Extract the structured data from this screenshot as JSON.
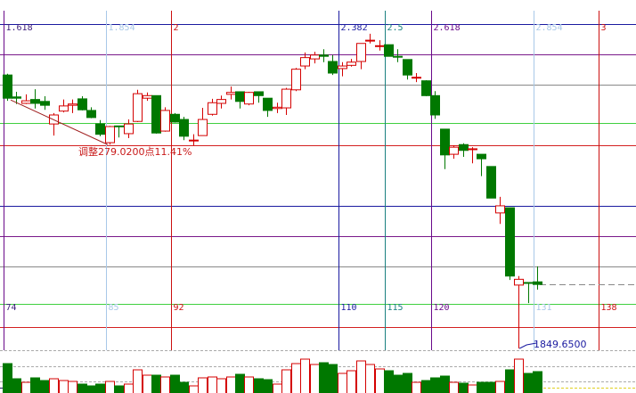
{
  "chart_data": {
    "type": "candlestick",
    "title": "",
    "colors": {
      "up": "#d40000",
      "down": "#007800",
      "background": "#ffffff"
    },
    "fib_time_lines": [
      {
        "ratio": "1.618",
        "bar": "74",
        "color": "#6a0a8a",
        "label_color": "#3a1a7a"
      },
      {
        "ratio": "1.854",
        "bar": "85",
        "color": "#a8c8e8",
        "label_color": "#a8c8e8"
      },
      {
        "ratio": "2",
        "bar": "92",
        "color": "#cc1010",
        "label_color": "#cc1010"
      },
      {
        "ratio": "2.382",
        "bar": "110",
        "color": "#1a1aa0",
        "label_color": "#1a1aa0"
      },
      {
        "ratio": "2.5",
        "bar": "115",
        "color": "#1a8080",
        "label_color": "#1a8080"
      },
      {
        "ratio": "2.618",
        "bar": "120",
        "color": "#6a0a8a",
        "label_color": "#6a0a8a"
      },
      {
        "ratio": "2.854",
        "bar": "131",
        "color": "#a8c8e8",
        "label_color": "#a8c8e8"
      },
      {
        "ratio": "3",
        "bar": "138",
        "color": "#cc1010",
        "label_color": "#cc1010"
      }
    ],
    "price_lines": [
      {
        "price": 2353.1,
        "color": "#1a1aa0"
      },
      {
        "price": 2306.0,
        "color": "#7a1a8a"
      },
      {
        "price": 2259.0,
        "color": "#888888"
      },
      {
        "price": 2199.5,
        "color": "#40d040"
      },
      {
        "price": 2165.0,
        "color": "#d42020"
      },
      {
        "price": 2070.9,
        "color": "#1a1aa0"
      },
      {
        "price": 2023.9,
        "color": "#7a1a8a"
      },
      {
        "price": 1976.9,
        "color": "#888888"
      },
      {
        "price": 1918.8,
        "color": "#40d040"
      },
      {
        "price": 1882.8,
        "color": "#d42020"
      }
    ],
    "first_bar": 74,
    "candles": [
      [
        2274,
        2276,
        2234,
        2238
      ],
      [
        2240,
        2248,
        2229,
        2238
      ],
      [
        2230,
        2244,
        2229,
        2234
      ],
      [
        2236,
        2252,
        2222,
        2230
      ],
      [
        2233,
        2241,
        2220,
        2227
      ],
      [
        2198,
        2215,
        2180,
        2212
      ],
      [
        2218,
        2236,
        2216,
        2226
      ],
      [
        2227,
        2236,
        2215,
        2229
      ],
      [
        2237,
        2241,
        2219,
        2220
      ],
      [
        2219,
        2224,
        2207,
        2208
      ],
      [
        2198,
        2204,
        2179,
        2182
      ],
      [
        2169,
        2195,
        2166,
        2194
      ],
      [
        2195,
        2195,
        2177,
        2194
      ],
      [
        2183,
        2205,
        2176,
        2198
      ],
      [
        2202,
        2251,
        2201,
        2245
      ],
      [
        2238,
        2247,
        2234,
        2242
      ],
      [
        2242,
        2242,
        2183,
        2184
      ],
      [
        2187,
        2224,
        2186,
        2219
      ],
      [
        2213,
        2215,
        2200,
        2201
      ],
      [
        2205,
        2209,
        2173,
        2179
      ],
      [
        2172,
        2182,
        2165,
        2173
      ],
      [
        2180,
        2223,
        2180,
        2205
      ],
      [
        2213,
        2237,
        2211,
        2231
      ],
      [
        2230,
        2242,
        2222,
        2236
      ],
      [
        2244,
        2256,
        2236,
        2247
      ],
      [
        2248,
        2248,
        2222,
        2233
      ],
      [
        2229,
        2248,
        2227,
        2247
      ],
      [
        2248,
        2248,
        2231,
        2242
      ],
      [
        2238,
        2238,
        2209,
        2219
      ],
      [
        2222,
        2231,
        2215,
        2224
      ],
      [
        2223,
        2254,
        2212,
        2252
      ],
      [
        2251,
        2285,
        2249,
        2283
      ],
      [
        2288,
        2309,
        2283,
        2301
      ],
      [
        2299,
        2310,
        2292,
        2305
      ],
      [
        2305,
        2314,
        2294,
        2303
      ],
      [
        2295,
        2305,
        2274,
        2277
      ],
      [
        2284,
        2294,
        2272,
        2288
      ],
      [
        2289,
        2299,
        2287,
        2294
      ],
      [
        2295,
        2323,
        2283,
        2323
      ],
      [
        2327,
        2338,
        2323,
        2328
      ],
      [
        2319,
        2328,
        2312,
        2319.5
      ],
      [
        2321,
        2321,
        2303,
        2303
      ],
      [
        2303,
        2314,
        2294,
        2302
      ],
      [
        2298,
        2298,
        2267,
        2274
      ],
      [
        2270,
        2277,
        2263,
        2270.5
      ],
      [
        2265,
        2266,
        2241,
        2242
      ],
      [
        2242,
        2249,
        2206,
        2212
      ],
      [
        2190,
        2190,
        2128,
        2150
      ],
      [
        2151,
        2165,
        2144,
        2162
      ],
      [
        2166,
        2168,
        2147,
        2157
      ],
      [
        2159,
        2162,
        2137,
        2159.5
      ],
      [
        2151,
        2151,
        2117,
        2144
      ],
      [
        2132,
        2132,
        2083,
        2083
      ],
      [
        2060,
        2085,
        2043,
        2071
      ],
      [
        2068,
        2068,
        1956,
        1962
      ],
      [
        1948,
        1962,
        1849.65,
        1957
      ],
      [
        1952,
        1952,
        1920,
        1951
      ],
      [
        1953,
        1977,
        1941,
        1949
      ]
    ],
    "volume": [
      33,
      16,
      12,
      17,
      14,
      16,
      14,
      13,
      10,
      8,
      10,
      13,
      8,
      10,
      26,
      20,
      20,
      18,
      20,
      12,
      8,
      17,
      18,
      16,
      18,
      21,
      18,
      16,
      15,
      10,
      26,
      33,
      38,
      32,
      34,
      32,
      22,
      25,
      36,
      32,
      27,
      25,
      20,
      22,
      12,
      14,
      17,
      19,
      12,
      11,
      9,
      12,
      12,
      13,
      26,
      38,
      22,
      24
    ],
    "annotations": {
      "retracement": "调整279.0200点11.41%",
      "low_price": "1849.6500"
    }
  }
}
